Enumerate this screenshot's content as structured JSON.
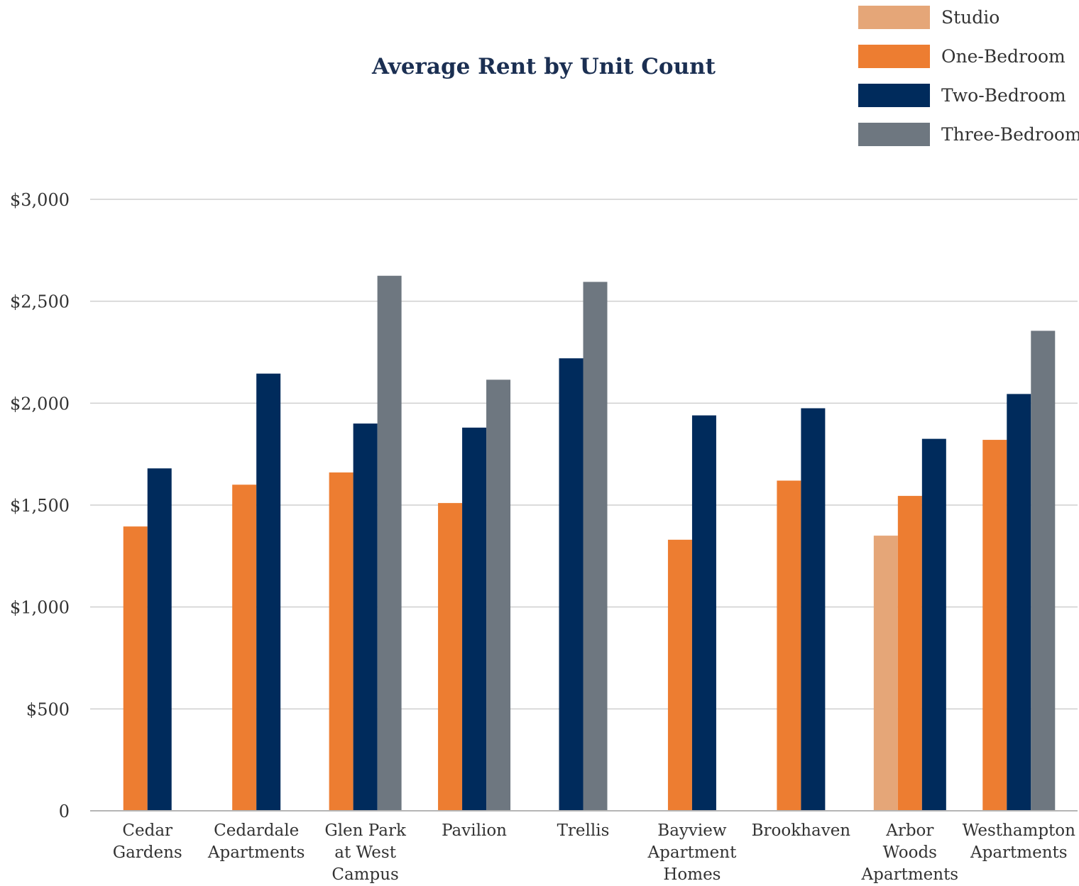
{
  "chart_data": {
    "type": "bar",
    "title": "Average Rent by Unit Count",
    "xlabel": "",
    "ylabel": "",
    "ylim": [
      0,
      3000
    ],
    "y_ticks": [
      {
        "value": 0,
        "label": "0"
      },
      {
        "value": 500,
        "label": "$500"
      },
      {
        "value": 1000,
        "label": "$1,000"
      },
      {
        "value": 1500,
        "label": "$1,500"
      },
      {
        "value": 2000,
        "label": "$2,000"
      },
      {
        "value": 2500,
        "label": "$2,500"
      },
      {
        "value": 3000,
        "label": "$3,000"
      }
    ],
    "grid": true,
    "legend_position": "top-right",
    "categories": [
      [
        "Cedar",
        "Gardens"
      ],
      [
        "Cedardale",
        "Apartments"
      ],
      [
        "Glen Park",
        "at West",
        "Campus"
      ],
      [
        "Pavilion"
      ],
      [
        "Trellis"
      ],
      [
        "Bayview",
        "Apartment",
        "Homes"
      ],
      [
        "Brookhaven"
      ],
      [
        "Arbor",
        "Woods",
        "Apartments"
      ],
      [
        "Westhampton",
        "Apartments"
      ]
    ],
    "series": [
      {
        "name": "Studio",
        "color": "#e5a678",
        "values": [
          null,
          null,
          null,
          null,
          null,
          null,
          null,
          1350,
          null
        ]
      },
      {
        "name": "One-Bedroom",
        "color": "#ed7d31",
        "values": [
          1395,
          1600,
          1660,
          1510,
          null,
          1330,
          1620,
          1545,
          1820
        ]
      },
      {
        "name": "Two-Bedroom",
        "color": "#002b5c",
        "values": [
          1680,
          2145,
          1900,
          1880,
          2220,
          1940,
          1975,
          1825,
          2045
        ]
      },
      {
        "name": "Three-Bedroom",
        "color": "#6e7780",
        "values": [
          null,
          null,
          2625,
          2115,
          2595,
          null,
          null,
          null,
          2355
        ]
      }
    ]
  }
}
